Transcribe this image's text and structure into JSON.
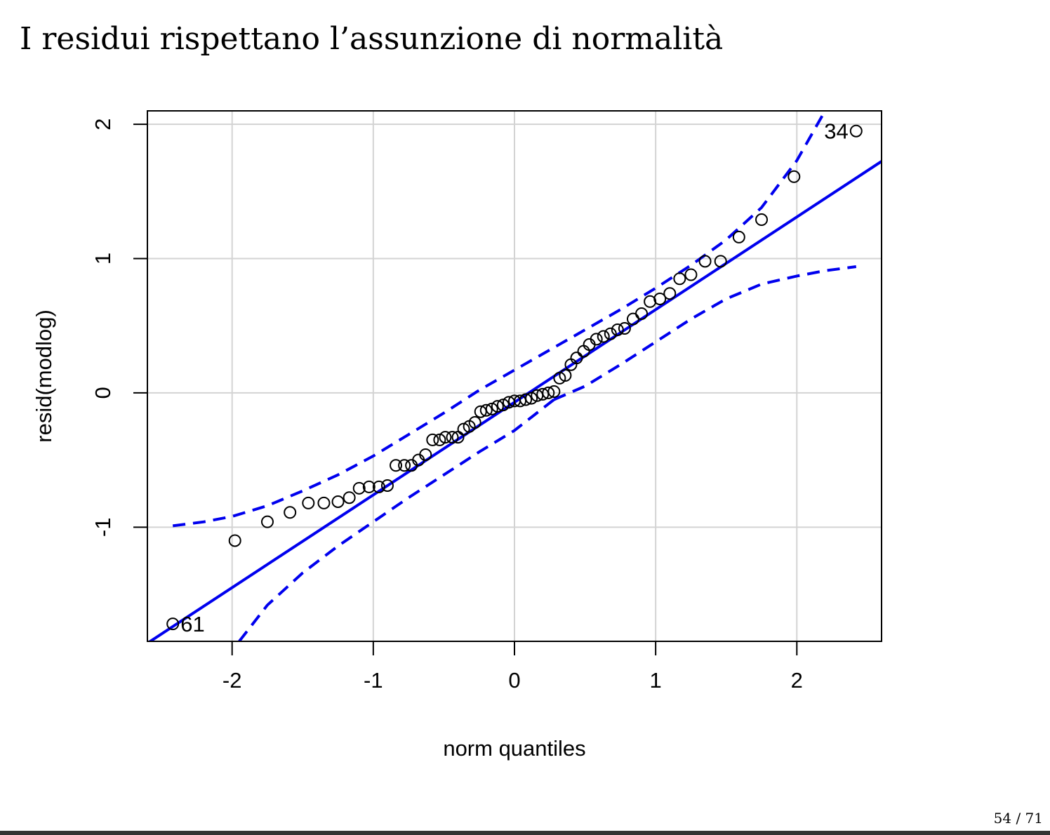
{
  "slide": {
    "title": "I residui rispettano l’assunzione di normalità",
    "page_current": "54",
    "page_total": "71"
  },
  "colors": {
    "line": "#0000ee",
    "grid": "#d3d3d3",
    "points": "#000000"
  },
  "chart_data": {
    "type": "scatter",
    "title": "",
    "xlabel": "norm quantiles",
    "ylabel": "resid(modlog)",
    "xlim": [
      -2.6,
      2.6
    ],
    "ylim": [
      -1.85,
      2.1
    ],
    "xticks": [
      -2,
      -1,
      0,
      1,
      2
    ],
    "yticks": [
      -1,
      0,
      1,
      2
    ],
    "grid": true,
    "points": [
      {
        "x": -2.42,
        "y": -1.72
      },
      {
        "x": -1.98,
        "y": -1.1
      },
      {
        "x": -1.75,
        "y": -0.96
      },
      {
        "x": -1.59,
        "y": -0.89
      },
      {
        "x": -1.46,
        "y": -0.82
      },
      {
        "x": -1.35,
        "y": -0.82
      },
      {
        "x": -1.25,
        "y": -0.81
      },
      {
        "x": -1.17,
        "y": -0.78
      },
      {
        "x": -1.1,
        "y": -0.71
      },
      {
        "x": -1.03,
        "y": -0.7
      },
      {
        "x": -0.96,
        "y": -0.7
      },
      {
        "x": -0.9,
        "y": -0.69
      },
      {
        "x": -0.84,
        "y": -0.54
      },
      {
        "x": -0.78,
        "y": -0.54
      },
      {
        "x": -0.73,
        "y": -0.54
      },
      {
        "x": -0.68,
        "y": -0.5
      },
      {
        "x": -0.63,
        "y": -0.46
      },
      {
        "x": -0.58,
        "y": -0.35
      },
      {
        "x": -0.53,
        "y": -0.35
      },
      {
        "x": -0.49,
        "y": -0.33
      },
      {
        "x": -0.44,
        "y": -0.33
      },
      {
        "x": -0.4,
        "y": -0.33
      },
      {
        "x": -0.36,
        "y": -0.27
      },
      {
        "x": -0.32,
        "y": -0.25
      },
      {
        "x": -0.28,
        "y": -0.22
      },
      {
        "x": -0.24,
        "y": -0.14
      },
      {
        "x": -0.2,
        "y": -0.13
      },
      {
        "x": -0.16,
        "y": -0.12
      },
      {
        "x": -0.12,
        "y": -0.1
      },
      {
        "x": -0.08,
        "y": -0.09
      },
      {
        "x": -0.04,
        "y": -0.07
      },
      {
        "x": 0.0,
        "y": -0.06
      },
      {
        "x": 0.04,
        "y": -0.06
      },
      {
        "x": 0.08,
        "y": -0.05
      },
      {
        "x": 0.12,
        "y": -0.04
      },
      {
        "x": 0.16,
        "y": -0.02
      },
      {
        "x": 0.2,
        "y": -0.01
      },
      {
        "x": 0.24,
        "y": 0.0
      },
      {
        "x": 0.28,
        "y": 0.01
      },
      {
        "x": 0.32,
        "y": 0.11
      },
      {
        "x": 0.36,
        "y": 0.13
      },
      {
        "x": 0.4,
        "y": 0.21
      },
      {
        "x": 0.44,
        "y": 0.26
      },
      {
        "x": 0.49,
        "y": 0.31
      },
      {
        "x": 0.53,
        "y": 0.36
      },
      {
        "x": 0.58,
        "y": 0.4
      },
      {
        "x": 0.63,
        "y": 0.42
      },
      {
        "x": 0.68,
        "y": 0.44
      },
      {
        "x": 0.73,
        "y": 0.47
      },
      {
        "x": 0.78,
        "y": 0.48
      },
      {
        "x": 0.84,
        "y": 0.55
      },
      {
        "x": 0.9,
        "y": 0.59
      },
      {
        "x": 0.96,
        "y": 0.68
      },
      {
        "x": 1.03,
        "y": 0.7
      },
      {
        "x": 1.1,
        "y": 0.74
      },
      {
        "x": 1.17,
        "y": 0.85
      },
      {
        "x": 1.25,
        "y": 0.88
      },
      {
        "x": 1.35,
        "y": 0.98
      },
      {
        "x": 1.46,
        "y": 0.98
      },
      {
        "x": 1.59,
        "y": 1.16
      },
      {
        "x": 1.75,
        "y": 1.29
      },
      {
        "x": 1.98,
        "y": 1.61
      },
      {
        "x": 2.42,
        "y": 1.95
      }
    ],
    "point_labels": [
      {
        "text": "61",
        "x": -2.42,
        "y": -1.72,
        "side": "right"
      },
      {
        "text": "34",
        "x": 2.42,
        "y": 1.95,
        "side": "left"
      }
    ],
    "reference_line": {
      "intercept": -0.07,
      "slope": 0.69
    },
    "envelope_upper": [
      {
        "x": -2.42,
        "y": -0.99
      },
      {
        "x": -2.2,
        "y": -0.96
      },
      {
        "x": -2.0,
        "y": -0.92
      },
      {
        "x": -1.75,
        "y": -0.84
      },
      {
        "x": -1.5,
        "y": -0.73
      },
      {
        "x": -1.25,
        "y": -0.61
      },
      {
        "x": -1.0,
        "y": -0.47
      },
      {
        "x": -0.75,
        "y": -0.31
      },
      {
        "x": -0.5,
        "y": -0.15
      },
      {
        "x": -0.25,
        "y": 0.02
      },
      {
        "x": 0.0,
        "y": 0.17
      },
      {
        "x": 0.25,
        "y": 0.32
      },
      {
        "x": 0.5,
        "y": 0.47
      },
      {
        "x": 0.75,
        "y": 0.62
      },
      {
        "x": 1.0,
        "y": 0.78
      },
      {
        "x": 1.25,
        "y": 0.95
      },
      {
        "x": 1.5,
        "y": 1.14
      },
      {
        "x": 1.75,
        "y": 1.38
      },
      {
        "x": 2.0,
        "y": 1.73
      },
      {
        "x": 2.2,
        "y": 2.1
      }
    ],
    "envelope_lower": [
      {
        "x": -1.95,
        "y": -1.85
      },
      {
        "x": -1.75,
        "y": -1.58
      },
      {
        "x": -1.5,
        "y": -1.34
      },
      {
        "x": -1.25,
        "y": -1.14
      },
      {
        "x": -1.0,
        "y": -0.96
      },
      {
        "x": -0.75,
        "y": -0.78
      },
      {
        "x": -0.5,
        "y": -0.61
      },
      {
        "x": -0.25,
        "y": -0.44
      },
      {
        "x": 0.0,
        "y": -0.28
      },
      {
        "x": 0.28,
        "y": -0.05
      }
    ],
    "envelope_lower_right": [
      {
        "x": 0.28,
        "y": -0.05
      },
      {
        "x": 0.5,
        "y": 0.05
      },
      {
        "x": 0.75,
        "y": 0.21
      },
      {
        "x": 1.0,
        "y": 0.38
      },
      {
        "x": 1.25,
        "y": 0.55
      },
      {
        "x": 1.5,
        "y": 0.7
      },
      {
        "x": 1.75,
        "y": 0.81
      },
      {
        "x": 2.0,
        "y": 0.87
      },
      {
        "x": 2.2,
        "y": 0.91
      },
      {
        "x": 2.42,
        "y": 0.94
      }
    ]
  }
}
